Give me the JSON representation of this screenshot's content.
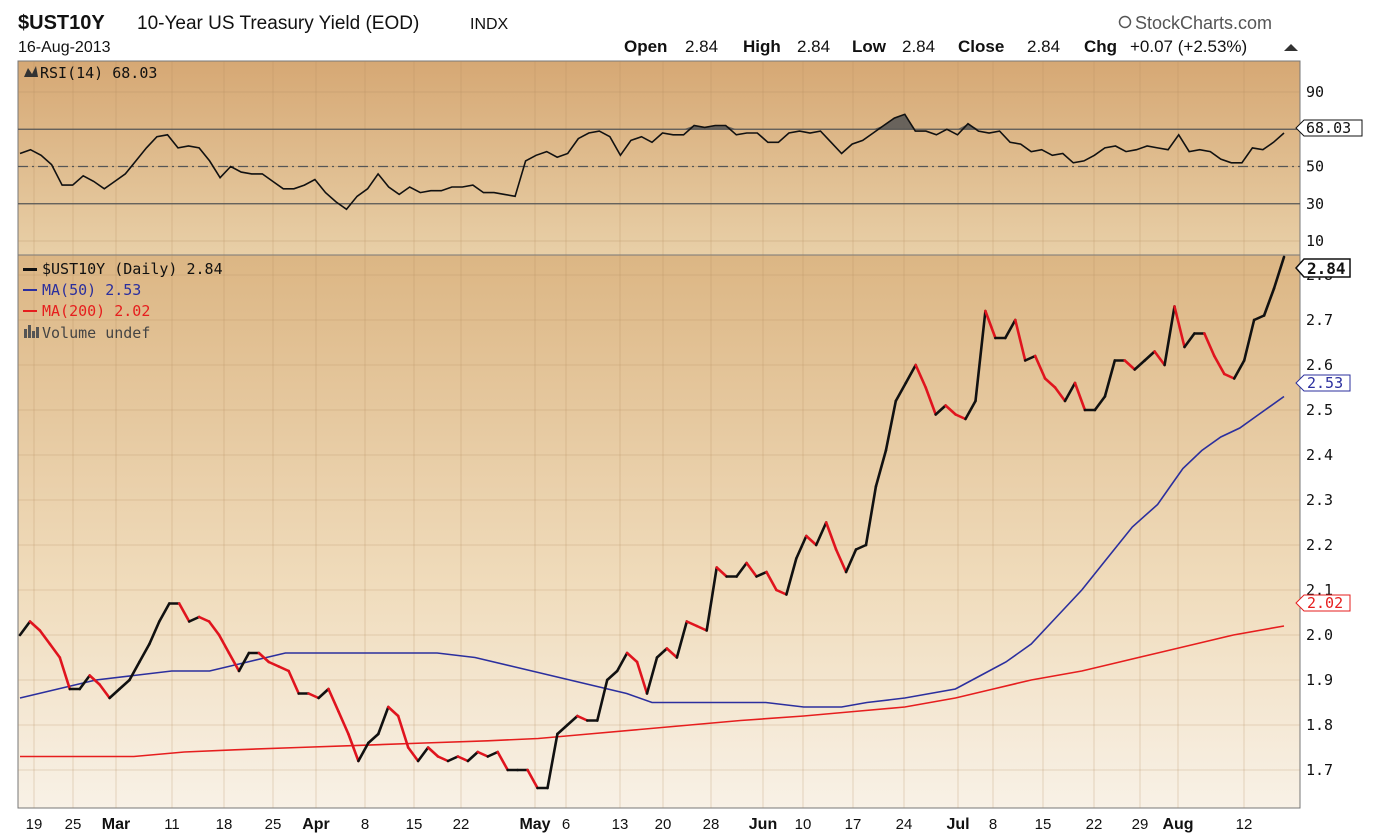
{
  "header": {
    "symbol": "$UST10Y",
    "name": "10-Year US Treasury Yield (EOD)",
    "exchange": "INDX",
    "date": "16-Aug-2013",
    "brand": "StockCharts.com",
    "open_label": "Open",
    "open": "2.84",
    "high_label": "High",
    "high": "2.84",
    "low_label": "Low",
    "low": "2.84",
    "close_label": "Close",
    "close": "2.84",
    "chg_label": "Chg",
    "chg": "+0.07 (+2.53%)"
  },
  "colors": {
    "bg_top": "#d8ad78",
    "bg_bottom": "#f7efe2",
    "price_up": "#111111",
    "price_down": "#e0141e",
    "ma50": "#2b2f9e",
    "ma200": "#e61e1e",
    "rsi": "#111111"
  },
  "chart_data": [
    {
      "type": "line",
      "title": "RSI(14) 68.03",
      "legend": "RSI(14) 68.03",
      "ylim": [
        0,
        100
      ],
      "yticks": [
        90,
        70,
        50,
        30,
        10
      ],
      "reference_lines": [
        70,
        50,
        30
      ],
      "last_label": "68.03",
      "values": [
        57,
        59,
        56,
        51,
        40,
        40,
        45,
        42,
        38,
        42,
        46,
        53,
        60,
        66,
        67,
        60,
        61,
        60,
        53,
        44,
        50,
        47,
        46,
        46,
        42,
        38,
        38,
        40,
        43,
        36,
        31,
        27,
        34,
        38,
        46,
        39,
        35,
        39,
        36,
        37,
        37,
        39,
        39,
        40,
        36,
        36,
        35,
        34,
        53,
        56,
        58,
        55,
        57,
        65,
        68,
        69,
        66,
        56,
        64,
        66,
        63,
        68,
        67,
        67,
        72,
        71,
        72,
        72,
        67,
        68,
        68,
        63,
        63,
        68,
        69,
        68,
        69,
        63,
        57,
        62,
        64,
        68,
        72,
        76,
        78,
        69,
        69,
        67,
        70,
        67,
        73,
        69,
        68,
        69,
        63,
        62,
        58,
        59,
        56,
        57,
        52,
        53,
        56,
        60,
        61,
        58,
        59,
        61,
        60,
        59,
        67,
        58,
        59,
        58,
        54,
        52,
        52,
        60,
        59,
        63,
        68
      ]
    },
    {
      "type": "line",
      "title": "$UST10Y (Daily) 2.84",
      "ylim": [
        1.63,
        2.88
      ],
      "yticks": [
        2.8,
        2.7,
        2.6,
        2.5,
        2.4,
        2.3,
        2.2,
        2.1,
        2.0,
        1.9,
        1.8,
        1.7
      ],
      "x_tick_labels": [
        "19",
        "25",
        "Mar",
        "11",
        "18",
        "25",
        "Apr",
        "8",
        "15",
        "22",
        "May",
        "6",
        "13",
        "20",
        "28",
        "Jun",
        "10",
        "17",
        "24",
        "Jul",
        "8",
        "15",
        "22",
        "29",
        "Aug",
        "12"
      ],
      "series": [
        {
          "name": "$UST10Y (Daily) 2.84",
          "last_label": "2.84",
          "values": [
            2.0,
            2.03,
            2.01,
            1.98,
            1.95,
            1.88,
            1.88,
            1.91,
            1.89,
            1.86,
            1.88,
            1.9,
            1.94,
            1.98,
            2.03,
            2.07,
            2.07,
            2.03,
            2.04,
            2.03,
            2.0,
            1.96,
            1.92,
            1.96,
            1.96,
            1.94,
            1.93,
            1.92,
            1.87,
            1.87,
            1.86,
            1.88,
            1.83,
            1.78,
            1.72,
            1.76,
            1.78,
            1.84,
            1.82,
            1.75,
            1.72,
            1.75,
            1.73,
            1.72,
            1.73,
            1.72,
            1.74,
            1.73,
            1.74,
            1.7,
            1.7,
            1.7,
            1.66,
            1.66,
            1.78,
            1.8,
            1.82,
            1.81,
            1.81,
            1.9,
            1.92,
            1.96,
            1.94,
            1.87,
            1.95,
            1.97,
            1.95,
            2.03,
            2.02,
            2.01,
            2.15,
            2.13,
            2.13,
            2.16,
            2.13,
            2.14,
            2.1,
            2.09,
            2.17,
            2.22,
            2.2,
            2.25,
            2.19,
            2.14,
            2.19,
            2.2,
            2.33,
            2.41,
            2.52,
            2.56,
            2.6,
            2.55,
            2.49,
            2.51,
            2.49,
            2.48,
            2.52,
            2.72,
            2.66,
            2.66,
            2.7,
            2.61,
            2.62,
            2.57,
            2.55,
            2.52,
            2.56,
            2.5,
            2.5,
            2.53,
            2.61,
            2.61,
            2.59,
            2.61,
            2.63,
            2.6,
            2.73,
            2.64,
            2.67,
            2.67,
            2.62,
            2.58,
            2.57,
            2.61,
            2.7,
            2.71,
            2.77,
            2.84
          ]
        },
        {
          "name": "MA(50) 2.53",
          "last_label": "2.53",
          "values": [
            1.86,
            1.88,
            1.9,
            1.91,
            1.92,
            1.92,
            1.94,
            1.96,
            1.96,
            1.96,
            1.96,
            1.96,
            1.95,
            1.93,
            1.91,
            1.89,
            1.87,
            1.85,
            1.85,
            1.85,
            1.85,
            1.84,
            1.84,
            1.85,
            1.86,
            1.87,
            1.88,
            1.91,
            1.94,
            1.98,
            2.04,
            2.1,
            2.17,
            2.24,
            2.29,
            2.33,
            2.37,
            2.41,
            2.44,
            2.46,
            2.49,
            2.53
          ],
          "x_frac": [
            0,
            0.03,
            0.06,
            0.09,
            0.12,
            0.15,
            0.18,
            0.21,
            0.24,
            0.27,
            0.3,
            0.33,
            0.36,
            0.39,
            0.42,
            0.45,
            0.48,
            0.5,
            0.53,
            0.56,
            0.59,
            0.62,
            0.65,
            0.67,
            0.7,
            0.72,
            0.74,
            0.76,
            0.78,
            0.8,
            0.82,
            0.84,
            0.86,
            0.88,
            0.9,
            0.91,
            0.92,
            0.935,
            0.95,
            0.965,
            0.98,
            1.0
          ]
        },
        {
          "name": "MA(200) 2.02",
          "last_label": "2.02",
          "values": [
            1.73,
            1.73,
            1.73,
            1.74,
            1.745,
            1.75,
            1.755,
            1.76,
            1.765,
            1.77,
            1.78,
            1.79,
            1.8,
            1.81,
            1.82,
            1.83,
            1.84,
            1.86,
            1.88,
            1.9,
            1.92,
            1.94,
            1.96,
            1.98,
            2.0,
            2.02
          ],
          "x_frac": [
            0,
            0.05,
            0.09,
            0.13,
            0.17,
            0.22,
            0.27,
            0.32,
            0.37,
            0.41,
            0.45,
            0.49,
            0.53,
            0.57,
            0.62,
            0.66,
            0.7,
            0.74,
            0.77,
            0.8,
            0.84,
            0.87,
            0.9,
            0.93,
            0.96,
            1.0
          ]
        }
      ],
      "extra_legend": "Volume undef"
    }
  ]
}
